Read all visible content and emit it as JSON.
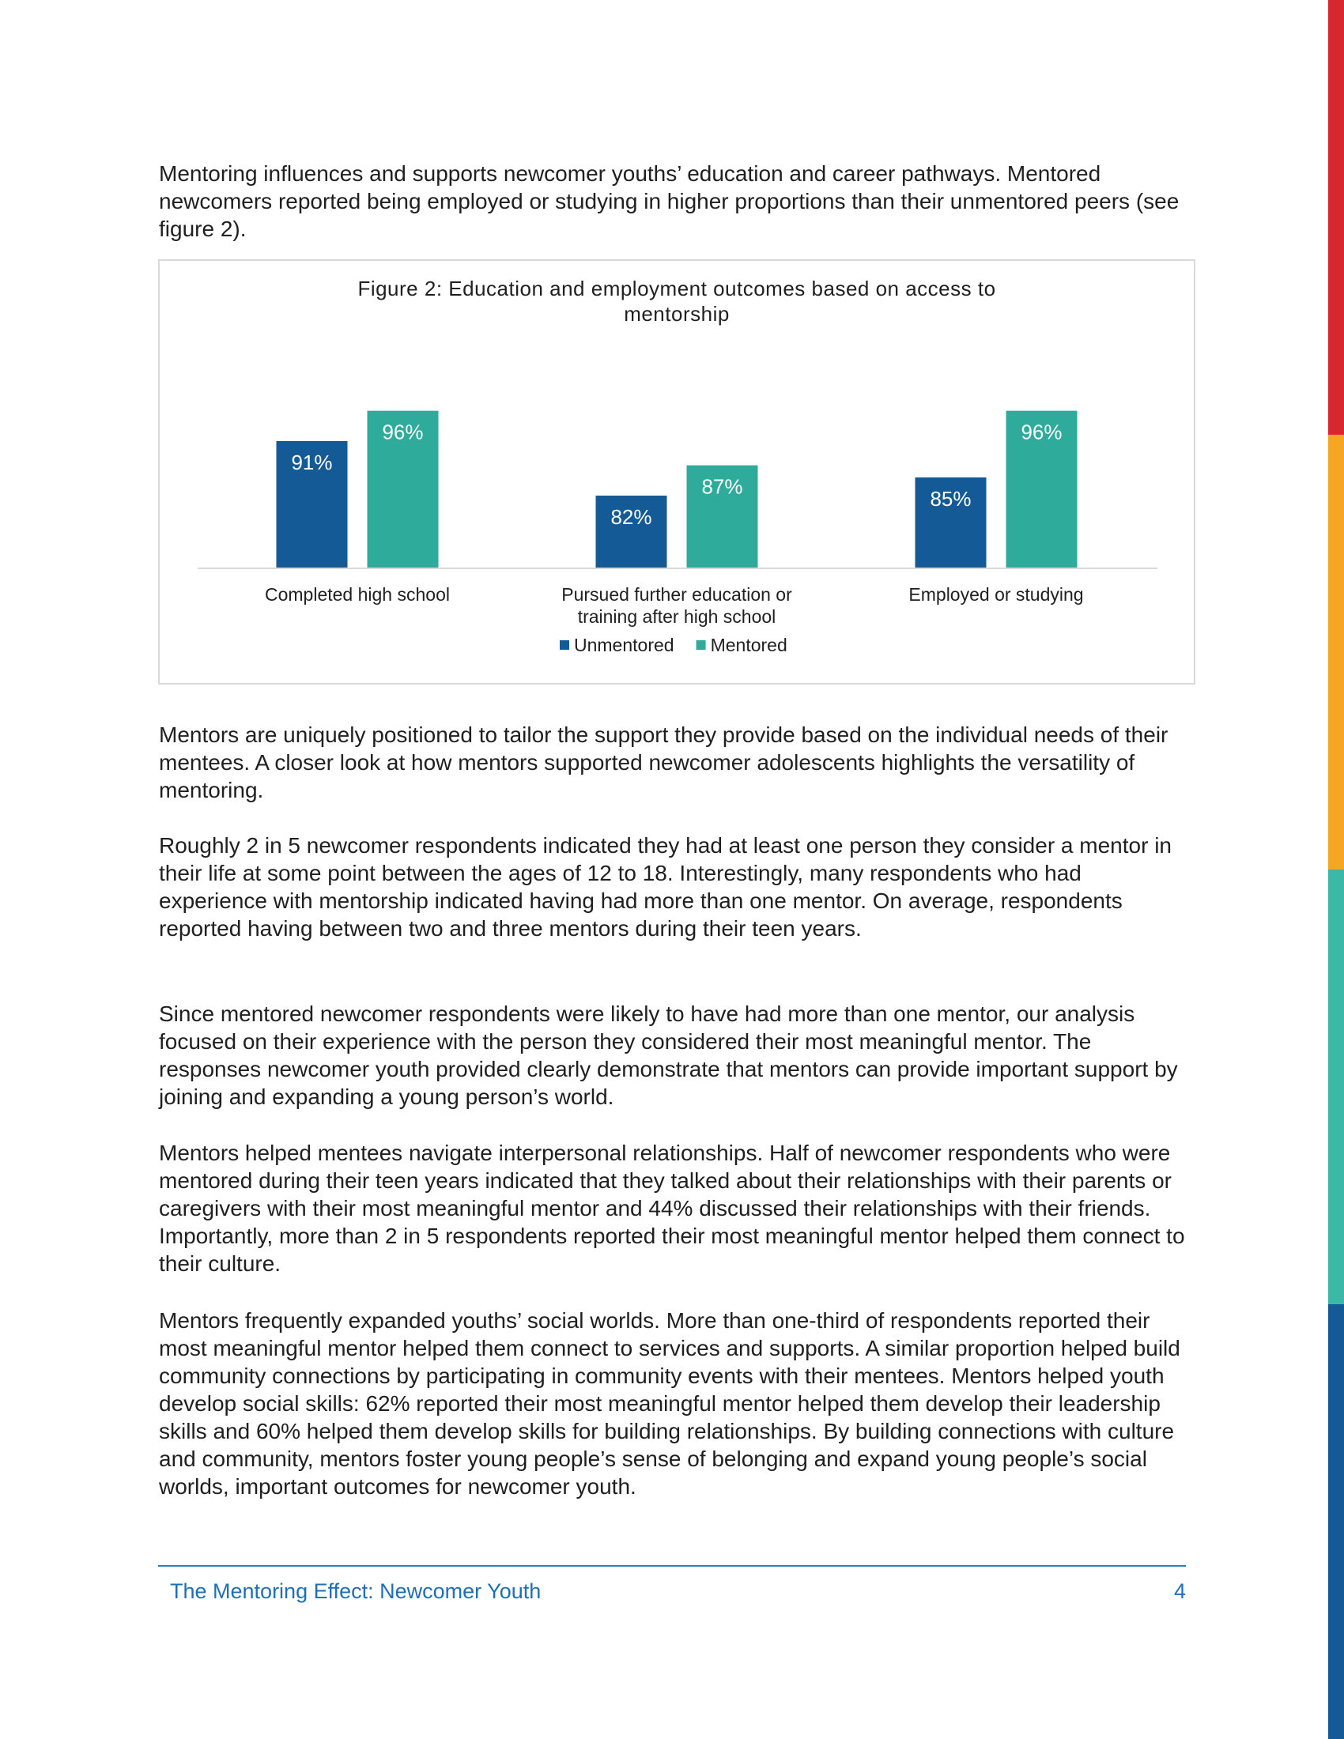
{
  "paragraphs": [
    "Mentoring influences and supports newcomer youths’ education and career pathways. Mentored newcomers reported being employed or studying in higher proportions than their unmentored peers (see figure 2).",
    "Mentors are uniquely positioned to tailor the support they provide based on the individual needs of their mentees. A closer look at how mentors supported newcomer adolescents highlights the versatility of mentoring.",
    "Roughly 2 in 5 newcomer respondents indicated they had at least one person they consider a mentor in their life at some point between the ages of 12 to 18. Interestingly, many respondents who had experience with mentorship indicated having had more than one mentor. On average, respondents reported having between two and three mentors during their teen years.",
    "Since mentored newcomer respondents were likely to have had more than one mentor, our analysis focused on their experience with the person they considered their most meaningful mentor. The responses newcomer youth provided clearly demonstrate that mentors can provide important support by joining and expanding a young person’s world.",
    "Mentors helped mentees navigate interpersonal relationships. Half of newcomer respondents who were mentored during their teen years indicated that they talked about their relationships with their parents or caregivers with their most meaningful mentor and 44% discussed their relationships with their friends. Importantly, more than 2 in 5 respondents reported their most meaningful mentor helped them connect to their culture.",
    "Mentors frequently expanded youths’ social worlds. More than one-third of respondents reported their most meaningful mentor helped them connect to services and supports. A similar proportion helped build community connections by participating in community events with their mentees. Mentors helped youth develop social skills: 62% reported their most meaningful mentor helped them develop their leadership skills and 60% helped them develop skills for building relationships. By building connections with culture and community, mentors foster young people’s sense of belonging and expand young people’s social worlds, important outcomes for newcomer youth."
  ],
  "chart_data": {
    "type": "bar",
    "title": [
      "Figure 2: Education and employment outcomes based on access to",
      "mentorship"
    ],
    "categories": [
      [
        "Completed high school"
      ],
      [
        "Pursued further education or",
        "training after high school"
      ],
      [
        "Employed or studying"
      ]
    ],
    "series": [
      {
        "name": "Unmentored",
        "values": [
          91,
          82,
          85
        ],
        "color": "#145a97"
      },
      {
        "name": "Mentored",
        "values": [
          96,
          87,
          96
        ],
        "color": "#2fab9c"
      }
    ],
    "value_suffix": "%",
    "ylim": [
      70,
      100
    ],
    "grid": false,
    "legend_position": "bottom"
  },
  "footer": {
    "title": "The Mentoring Effect: Newcomer Youth",
    "page_number": "4"
  }
}
